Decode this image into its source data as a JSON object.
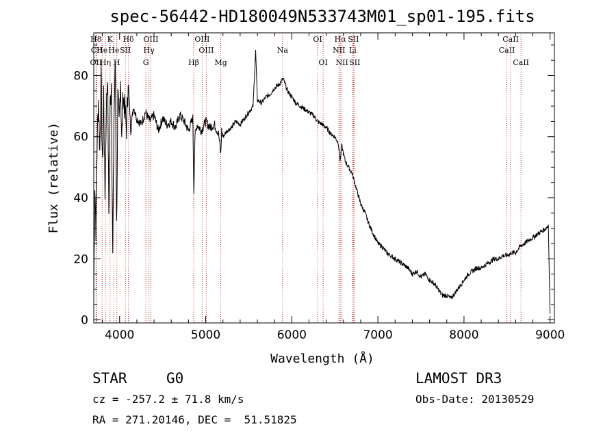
{
  "chart_data": {
    "type": "line",
    "title": "spec-56442-HD180049N533743M01_sp01-195.fits",
    "xlabel": "Wavelength (Å)",
    "ylabel": "Flux (relative)",
    "xlim": [
      3700,
      9050
    ],
    "ylim": [
      -1,
      94
    ],
    "x_ticks": [
      4000,
      5000,
      6000,
      7000,
      8000,
      9000
    ],
    "y_ticks": [
      0,
      20,
      40,
      60,
      80
    ],
    "line_color": "#000000",
    "marker_color": "#cc3333",
    "series": [
      {
        "name": "flux",
        "x": [
          3700,
          3712,
          3725,
          3740,
          3755,
          3770,
          3785,
          3800,
          3815,
          3830,
          3845,
          3860,
          3875,
          3890,
          3905,
          3920,
          3935,
          3950,
          3965,
          3980,
          3995,
          4010,
          4025,
          4040,
          4060,
          4080,
          4100,
          4130,
          4160,
          4200,
          4250,
          4300,
          4350,
          4400,
          4450,
          4500,
          4550,
          4600,
          4650,
          4700,
          4750,
          4800,
          4850,
          4862,
          4875,
          4900,
          4950,
          5000,
          5050,
          5100,
          5150,
          5175,
          5185,
          5200,
          5250,
          5300,
          5350,
          5400,
          5450,
          5500,
          5550,
          5580,
          5600,
          5650,
          5700,
          5750,
          5800,
          5850,
          5900,
          5950,
          6000,
          6050,
          6100,
          6150,
          6200,
          6250,
          6300,
          6350,
          6400,
          6450,
          6500,
          6540,
          6562,
          6580,
          6620,
          6660,
          6700,
          6750,
          6800,
          6850,
          6900,
          6950,
          7000,
          7050,
          7100,
          7150,
          7200,
          7250,
          7300,
          7350,
          7400,
          7450,
          7500,
          7550,
          7600,
          7650,
          7700,
          7750,
          7800,
          7850,
          7900,
          7950,
          8000,
          8050,
          8100,
          8150,
          8200,
          8250,
          8300,
          8350,
          8400,
          8450,
          8500,
          8550,
          8600,
          8650,
          8700,
          8750,
          8800,
          8850,
          8900,
          8950,
          8980,
          8990,
          9000
        ],
        "values": [
          8,
          45,
          30,
          60,
          72,
          55,
          80,
          50,
          75,
          40,
          68,
          82,
          35,
          70,
          78,
          20,
          66,
          85,
          30,
          72,
          64,
          80,
          58,
          74,
          69,
          63,
          78,
          62,
          70,
          66,
          64,
          68,
          65,
          67,
          62,
          66,
          64,
          65,
          63,
          67,
          65,
          62,
          66,
          42,
          60,
          64,
          62,
          65,
          63,
          64,
          61,
          54,
          62,
          60,
          62,
          63,
          65,
          64,
          66,
          68,
          70,
          88,
          72,
          71,
          73,
          74,
          76,
          77,
          79,
          75,
          73,
          71,
          70,
          69,
          68,
          67,
          65,
          64,
          63,
          61,
          60,
          58,
          52,
          57,
          52,
          50,
          48,
          43,
          38,
          35,
          31,
          28,
          25,
          24,
          22,
          21,
          20,
          19,
          18,
          17,
          15,
          16,
          14,
          15,
          13,
          12,
          10,
          8,
          8,
          7,
          9,
          11,
          13,
          15,
          16,
          17,
          17,
          18,
          19,
          20,
          20,
          21,
          21,
          22,
          22,
          24,
          25,
          26,
          27,
          28,
          29,
          30,
          31,
          15,
          2
        ],
        "values_note": "approximate"
      }
    ],
    "line_markers": [
      {
        "label": "H8",
        "wl": 3727,
        "row": 1
      },
      {
        "label": "OII",
        "wl": 3727,
        "row": 3
      },
      {
        "label": "CII",
        "wl": 3735,
        "row": 2
      },
      {
        "label": "He",
        "wl": 3797,
        "row": 2
      },
      {
        "label": "Hη",
        "wl": 3835,
        "row": 3
      },
      {
        "label": "K",
        "wl": 3889,
        "row": 1
      },
      {
        "label": "He",
        "wl": 3933,
        "row": 2
      },
      {
        "label": "H",
        "wl": 3968,
        "row": 3
      },
      {
        "label": "Hδ",
        "wl": 4102,
        "row": 1
      },
      {
        "label": "SII",
        "wl": 4068,
        "row": 2
      },
      {
        "label": "OIII",
        "wl": 4363,
        "row": 1
      },
      {
        "label": "Hγ",
        "wl": 4341,
        "row": 2
      },
      {
        "label": "G",
        "wl": 4305,
        "row": 3
      },
      {
        "label": "Hβ",
        "wl": 4861,
        "row": 3
      },
      {
        "label": "OIII",
        "wl": 4959,
        "row": 1
      },
      {
        "label": "OIII",
        "wl": 5007,
        "row": 2
      },
      {
        "label": "Mg",
        "wl": 5175,
        "row": 3
      },
      {
        "label": "Na",
        "wl": 5893,
        "row": 2
      },
      {
        "label": "OI",
        "wl": 6300,
        "row": 1
      },
      {
        "label": "OI",
        "wl": 6364,
        "row": 3
      },
      {
        "label": "Hα",
        "wl": 6563,
        "row": 1
      },
      {
        "label": "NII",
        "wl": 6548,
        "row": 2
      },
      {
        "label": "NII",
        "wl": 6583,
        "row": 3
      },
      {
        "label": "SII",
        "wl": 6716,
        "row": 1
      },
      {
        "label": "Li",
        "wl": 6708,
        "row": 2
      },
      {
        "label": "SII",
        "wl": 6731,
        "row": 3
      },
      {
        "label": "CaII",
        "wl": 8498,
        "row": 2
      },
      {
        "label": "CaII",
        "wl": 8542,
        "row": 1
      },
      {
        "label": "CaII",
        "wl": 8662,
        "row": 3
      }
    ]
  },
  "info": {
    "object_class": "STAR",
    "subclass": "G0",
    "survey": "LAMOST DR3",
    "cz": "cz = -257.2 ± 71.8 km/s",
    "obs_date": "Obs-Date: 20130529",
    "coords": "RA = 271.20146, DEC =  51.51825"
  }
}
